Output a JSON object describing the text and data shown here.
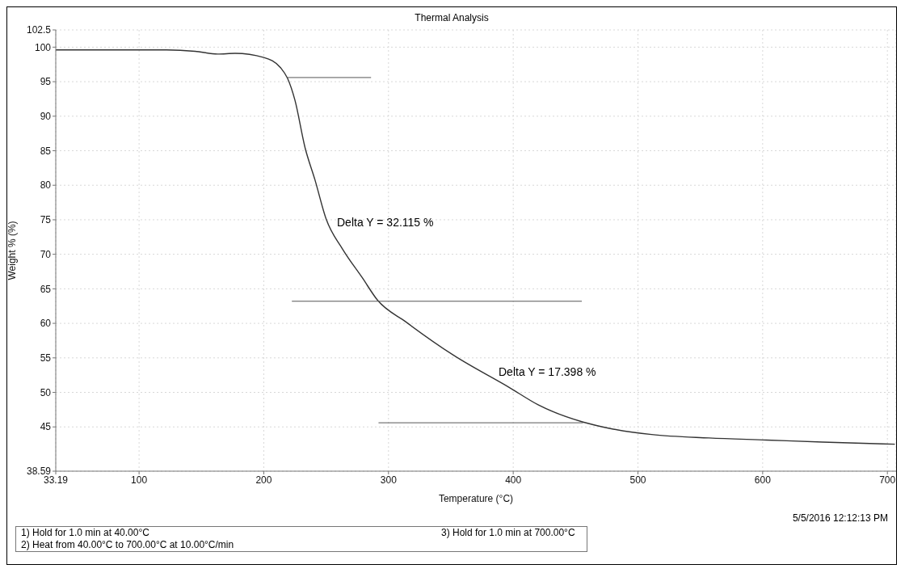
{
  "chart_data": {
    "type": "line",
    "title": "Thermal Analysis",
    "xlabel": "Temperature (°C)",
    "ylabel": "Weight % (%)",
    "xlim": [
      33.19,
      707
    ],
    "xticks": [
      33.19,
      100,
      200,
      300,
      400,
      500,
      600,
      700
    ],
    "ylim": [
      38.59,
      102.5
    ],
    "yticks": [
      38.59,
      45,
      50,
      55,
      60,
      65,
      70,
      75,
      80,
      85,
      90,
      95,
      100,
      102.5
    ],
    "grid": true,
    "marker": "none",
    "line_style": "solid",
    "series": [
      {
        "color": "#333333",
        "x": [
          33.19,
          80,
          122,
          145,
          163,
          177,
          200,
          213.6,
          219,
          225,
          233,
          241,
          250,
          263,
          279,
          291,
          314,
          352,
          397,
          420,
          456,
          477,
          511,
          557,
          603,
          648,
          706
        ],
        "values": [
          99.6,
          99.6,
          99.6,
          99.4,
          99.0,
          99.1,
          98.5,
          97.0,
          95.5,
          92.3,
          85.5,
          80.8,
          75.1,
          70.8,
          66.6,
          63.4,
          60.2,
          55.4,
          50.7,
          48.2,
          45.7,
          44.8,
          43.9,
          43.4,
          43.1,
          42.8,
          42.5
        ]
      },
      {
        "color": "#555555",
        "x": [
          219,
          286
        ],
        "values": [
          95.6,
          95.6
        ]
      },
      {
        "color": "#555555",
        "x": [
          222.5,
          455
        ],
        "values": [
          63.2,
          63.2
        ]
      },
      {
        "color": "#555555",
        "x": [
          292,
          456
        ],
        "values": [
          45.6,
          45.6
        ]
      }
    ],
    "annotations": [
      "Delta Y = 32.115 %",
      "Delta Y = 17.398 %",
      "5/5/2016 12:12:13 PM",
      "1)  Hold for 1.0 min at 40.00°C",
      "2)  Heat from 40.00°C to 700.00°C at 10.00°C/min",
      "3)    Hold for 1.0 min at 700.00°C"
    ]
  }
}
